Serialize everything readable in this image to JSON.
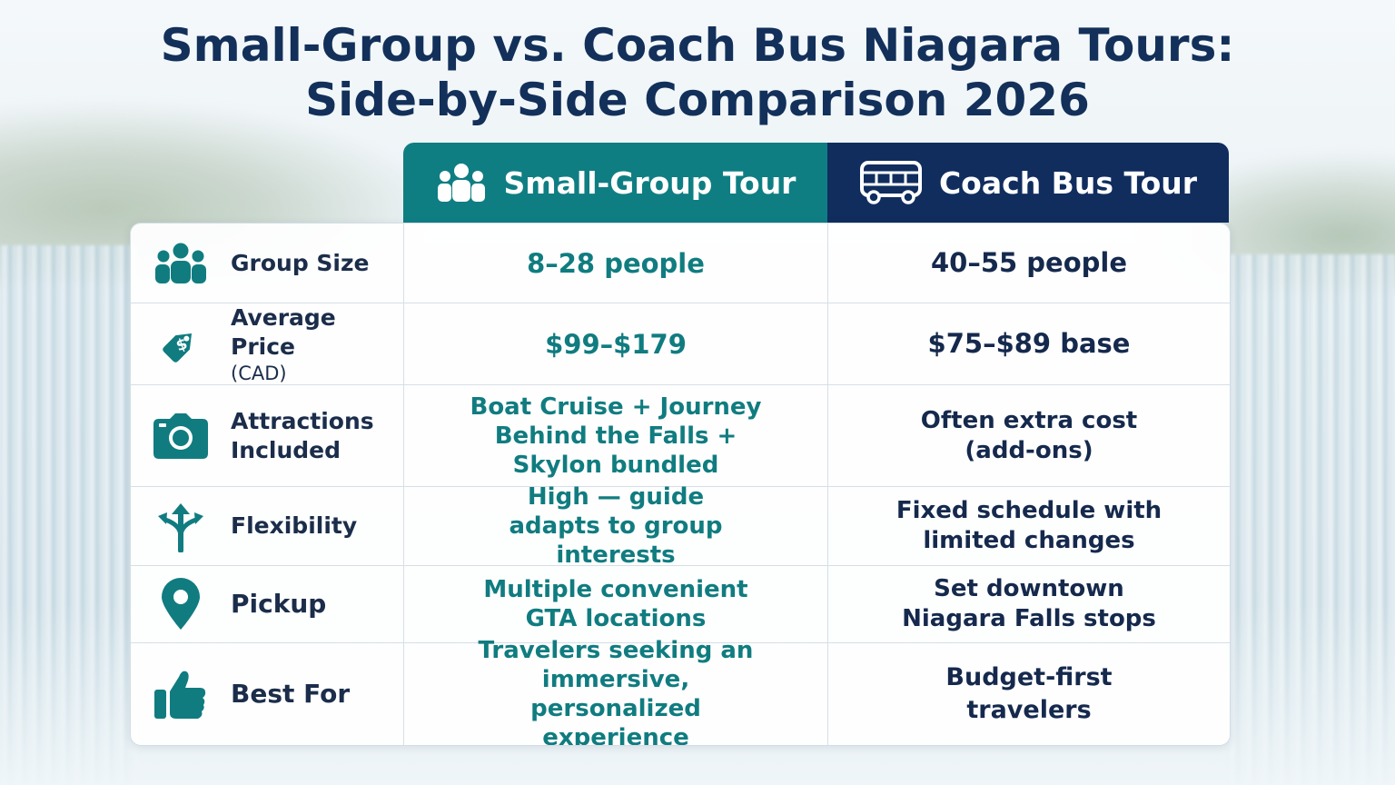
{
  "title_line1": "Small-Group vs. Coach Bus Niagara Tours:",
  "title_line2": "Side-by-Side Comparison 2026",
  "columns": {
    "small": {
      "label": "Small-Group Tour",
      "icon": "group-icon"
    },
    "coach": {
      "label": "Coach Bus Tour",
      "icon": "bus-icon"
    }
  },
  "rows": [
    {
      "label": "Group Size",
      "sublabel": "",
      "icon": "people-icon",
      "small": "8–28 people",
      "coach": "40–55 people"
    },
    {
      "label": "Average Price",
      "sublabel": "(CAD)",
      "icon": "price-tag-icon",
      "small": "$99–$179",
      "coach": "$75–$89 base"
    },
    {
      "label": "Attractions Included",
      "sublabel": "",
      "icon": "camera-icon",
      "small": "Boat Cruise + Journey Behind the Falls + Skylon bundled",
      "coach": "Often extra cost (add-ons)"
    },
    {
      "label": "Flexibility",
      "sublabel": "",
      "icon": "split-arrows-icon",
      "small": "High — guide adapts to group interests",
      "coach": "Fixed schedule with limited changes"
    },
    {
      "label": "Pickup",
      "sublabel": "",
      "icon": "location-pin-icon",
      "small": "Multiple convenient GTA locations",
      "coach": "Set downtown Niagara Falls stops"
    },
    {
      "label": "Best For",
      "sublabel": "",
      "icon": "thumbs-up-icon",
      "small": "Travelers seeking an immersive, personalized experience",
      "coach": "Budget-first travelers"
    }
  ],
  "colors": {
    "teal": "#0f7e83",
    "navy": "#102d5e",
    "title": "#12305a"
  }
}
